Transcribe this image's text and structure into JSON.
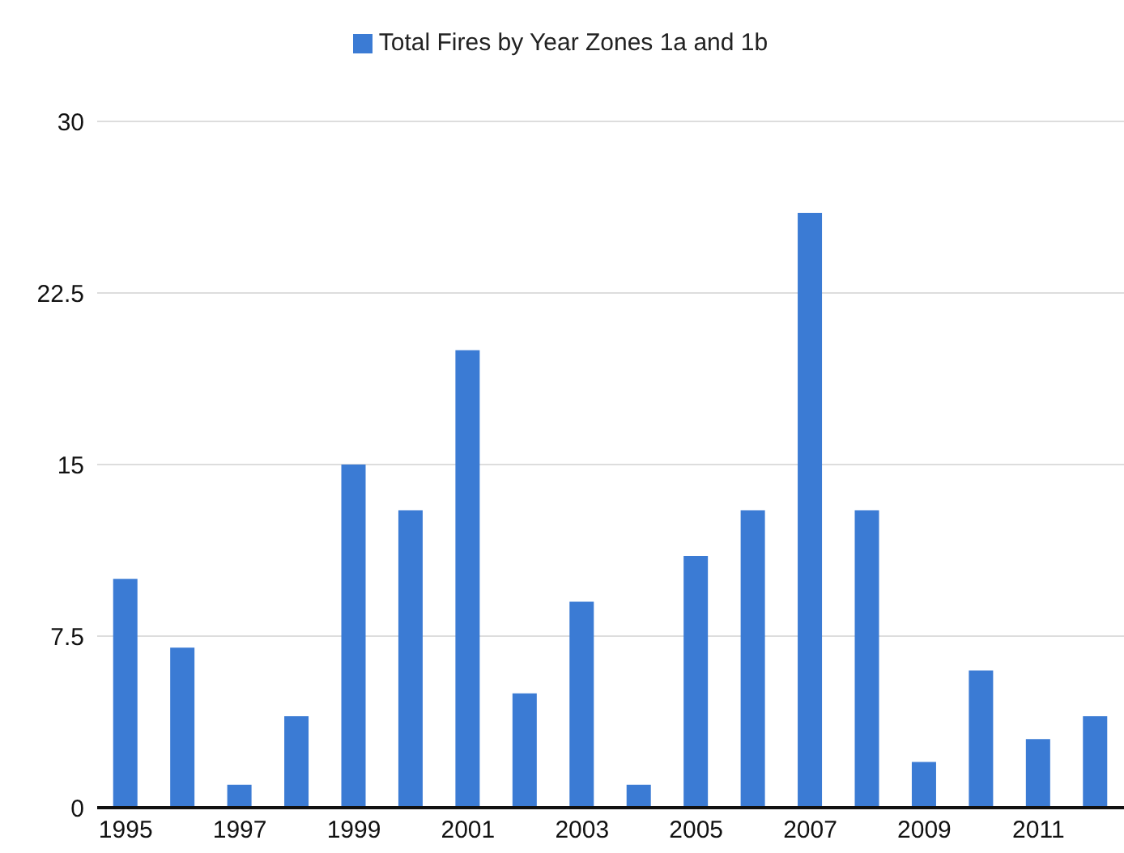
{
  "chart_data": {
    "type": "bar",
    "categories": [
      "1995",
      null,
      "1997",
      null,
      "1999",
      null,
      "2001",
      null,
      "2003",
      null,
      "2005",
      null,
      "2007",
      null,
      "2009",
      null,
      "2011",
      null
    ],
    "series": [
      {
        "name": "Total Fires by Year Zones 1a and 1b",
        "color": "#3b7bd4",
        "values": [
          10,
          7,
          1,
          4,
          15,
          13,
          20,
          5,
          9,
          1,
          11,
          13,
          26,
          13,
          2,
          6,
          3,
          4
        ]
      }
    ],
    "ylim": [
      0,
      30
    ],
    "yticks": [
      0,
      7.5,
      15,
      22.5,
      30
    ],
    "grid": "y",
    "legend": "top"
  }
}
